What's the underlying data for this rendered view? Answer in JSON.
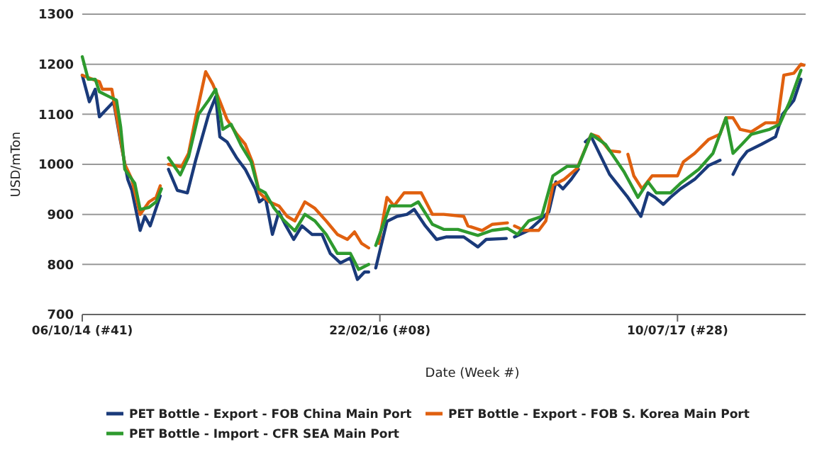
{
  "chart_data": {
    "type": "line",
    "xlabel": "Date (Week #)",
    "ylabel": "USD/mTon",
    "ylim": [
      700,
      1300
    ],
    "yticks": [
      700,
      800,
      900,
      1000,
      1100,
      1200,
      1300
    ],
    "xlim": [
      "2014-10-06",
      "2018-02-12"
    ],
    "xticks": [
      {
        "value": "2014-10-06",
        "label": "06/10/14 (#41)"
      },
      {
        "value": "2016-02-22",
        "label": "22/02/16 (#08)"
      },
      {
        "value": "2017-07-10",
        "label": "10/07/17 (#28)"
      }
    ],
    "grid": "y",
    "legend": "bottom",
    "marker": "none",
    "line_style": "solid",
    "series": [
      {
        "name": "PET Bottle - Export - FOB China Main Port",
        "color": "#1a3a7a",
        "x": [
          "2014-10-06",
          "2014-10-18",
          "2014-10-28",
          "2014-11-04",
          "2014-11-16",
          "2014-11-28",
          "2014-12-10",
          "2014-12-22",
          "2014-12-29",
          "2015-01-12",
          "2015-01-20",
          "2015-01-29",
          "2015-02-15",
          "2015-02-22",
          "2015-03-01",
          "2015-03-16",
          "2015-04-02",
          "2015-04-16",
          "2015-05-08",
          "2015-05-20",
          "2015-05-27",
          "2015-06-08",
          "2015-06-25",
          "2015-07-09",
          "2015-07-26",
          "2015-08-02",
          "2015-08-12",
          "2015-08-24",
          "2015-09-04",
          "2015-09-16",
          "2015-09-29",
          "2015-10-13",
          "2015-10-30",
          "2015-11-16",
          "2015-11-30",
          "2015-12-17",
          "2016-01-03",
          "2016-01-15",
          "2016-01-27",
          "2016-02-03",
          "2016-02-09",
          "2016-02-15",
          "2016-03-05",
          "2016-03-22",
          "2016-04-08",
          "2016-04-20",
          "2016-05-09",
          "2016-05-28",
          "2016-06-14",
          "2016-07-13",
          "2016-08-06",
          "2016-08-20",
          "2016-09-23",
          "2016-09-30",
          "2016-10-07",
          "2016-10-31",
          "2016-11-17",
          "2016-12-04",
          "2016-12-16",
          "2016-12-28",
          "2017-01-11",
          "2017-01-23",
          "2017-01-29",
          "2017-02-04",
          "2017-02-14",
          "2017-03-17",
          "2017-04-17",
          "2017-05-09",
          "2017-05-21",
          "2017-06-02",
          "2017-06-16",
          "2017-06-28",
          "2017-07-15",
          "2017-08-08",
          "2017-09-01",
          "2017-09-20",
          "2017-09-30",
          "2017-10-12",
          "2017-10-24",
          "2017-11-05",
          "2017-11-29",
          "2017-12-23",
          "2018-01-04",
          "2018-01-23",
          "2018-02-04"
        ],
        "values": [
          1178,
          1125,
          1150,
          1095,
          1110,
          1125,
          1045,
          970,
          948,
          868,
          896,
          877,
          937,
          null,
          990,
          948,
          943,
          1008,
          1100,
          1135,
          1055,
          1045,
          1012,
          990,
          951,
          925,
          934,
          860,
          905,
          877,
          850,
          877,
          860,
          860,
          822,
          803,
          813,
          770,
          785,
          785,
          null,
          793,
          886,
          896,
          900,
          910,
          877,
          850,
          855,
          855,
          835,
          850,
          852,
          null,
          855,
          868,
          886,
          905,
          965,
          951,
          970,
          990,
          null,
          1045,
          1055,
          980,
          934,
          896,
          943,
          934,
          920,
          934,
          951,
          970,
          998,
          1008,
          null,
          980,
          1008,
          1026,
          1040,
          1055,
          1100,
          1128,
          1170
        ]
      },
      {
        "name": "PET Bottle - Export - FOB S. Korea Main Port",
        "color": "#e0600f",
        "x": [
          "2014-10-06",
          "2014-10-23",
          "2014-11-04",
          "2014-11-09",
          "2014-11-25",
          "2014-12-05",
          "2014-12-17",
          "2014-12-29",
          "2015-01-12",
          "2015-01-27",
          "2015-02-08",
          "2015-02-15",
          "2015-02-22",
          "2015-03-01",
          "2015-03-23",
          "2015-04-04",
          "2015-04-16",
          "2015-05-03",
          "2015-05-15",
          "2015-05-27",
          "2015-06-08",
          "2015-06-25",
          "2015-07-09",
          "2015-07-21",
          "2015-08-02",
          "2015-08-19",
          "2015-09-04",
          "2015-09-18",
          "2015-10-01",
          "2015-10-18",
          "2015-11-04",
          "2015-11-23",
          "2015-12-12",
          "2015-12-29",
          "2016-01-10",
          "2016-01-22",
          "2016-02-03",
          "2016-02-09",
          "2016-02-20",
          "2016-03-05",
          "2016-03-17",
          "2016-04-03",
          "2016-05-02",
          "2016-05-21",
          "2016-06-09",
          "2016-07-13",
          "2016-07-20",
          "2016-08-13",
          "2016-08-30",
          "2016-09-25",
          "2016-09-30",
          "2016-10-07",
          "2016-10-23",
          "2016-11-17",
          "2016-11-29",
          "2016-12-11",
          "2016-12-30",
          "2017-01-21",
          "2017-02-14",
          "2017-02-26",
          "2017-03-17",
          "2017-04-03",
          "2017-04-10",
          "2017-04-17",
          "2017-04-27",
          "2017-05-11",
          "2017-05-28",
          "2017-06-21",
          "2017-07-10",
          "2017-07-20",
          "2017-08-08",
          "2017-09-01",
          "2017-09-20",
          "2017-09-30",
          "2017-10-12",
          "2017-10-24",
          "2017-11-12",
          "2017-12-06",
          "2017-12-26",
          "2018-01-06",
          "2018-01-23",
          "2018-02-04",
          "2018-02-09"
        ],
        "values": [
          1178,
          1170,
          1165,
          1150,
          1150,
          1083,
          1000,
          970,
          900,
          925,
          934,
          957,
          null,
          1000,
          995,
          1022,
          1093,
          1185,
          1160,
          1126,
          1090,
          1060,
          1040,
          1005,
          943,
          925,
          917,
          896,
          887,
          925,
          912,
          887,
          860,
          850,
          865,
          842,
          833,
          null,
          842,
          934,
          917,
          943,
          943,
          900,
          900,
          896,
          877,
          868,
          880,
          883,
          null,
          877,
          868,
          868,
          887,
          958,
          970,
          992,
          1060,
          1055,
          1027,
          1025,
          null,
          1020,
          977,
          951,
          977,
          977,
          977,
          1005,
          1022,
          1050,
          1060,
          1093,
          1093,
          1070,
          1065,
          1083,
          1083,
          1178,
          1182,
          1200,
          1198
        ]
      },
      {
        "name": "PET Bottle - Import - CFR SEA Main Port",
        "color": "#2e9a2e",
        "x": [
          "2014-10-06",
          "2014-10-16",
          "2014-10-28",
          "2014-11-04",
          "2014-11-21",
          "2014-12-03",
          "2014-12-10",
          "2014-12-17",
          "2015-01-03",
          "2015-01-12",
          "2015-01-27",
          "2015-02-08",
          "2015-02-17",
          "2015-02-22",
          "2015-03-01",
          "2015-03-21",
          "2015-04-04",
          "2015-04-21",
          "2015-05-08",
          "2015-05-20",
          "2015-06-01",
          "2015-06-15",
          "2015-07-02",
          "2015-07-19",
          "2015-07-31",
          "2015-08-12",
          "2015-08-26",
          "2015-09-11",
          "2015-10-01",
          "2015-10-18",
          "2015-11-04",
          "2015-11-23",
          "2015-12-12",
          "2016-01-03",
          "2016-01-17",
          "2016-02-03",
          "2016-02-09",
          "2016-02-15",
          "2016-03-10",
          "2016-03-27",
          "2016-04-15",
          "2016-04-27",
          "2016-05-21",
          "2016-06-09",
          "2016-07-03",
          "2016-08-06",
          "2016-08-30",
          "2016-09-25",
          "2016-10-12",
          "2016-10-31",
          "2016-11-22",
          "2016-12-11",
          "2017-01-04",
          "2017-01-23",
          "2017-02-14",
          "2017-03-10",
          "2017-04-10",
          "2017-05-04",
          "2017-05-21",
          "2017-06-04",
          "2017-06-28",
          "2017-07-15",
          "2017-08-15",
          "2017-09-08",
          "2017-09-30",
          "2017-10-12",
          "2017-10-27",
          "2017-11-12",
          "2017-12-13",
          "2017-12-30",
          "2018-01-16",
          "2018-02-04"
        ],
        "values": [
          1215,
          1170,
          1170,
          1145,
          1135,
          1128,
          1075,
          990,
          962,
          910,
          914,
          925,
          951,
          null,
          1013,
          979,
          1015,
          1100,
          1128,
          1150,
          1070,
          1080,
          1038,
          1005,
          951,
          943,
          914,
          890,
          867,
          900,
          887,
          860,
          822,
          822,
          790,
          800,
          null,
          838,
          917,
          917,
          917,
          925,
          880,
          870,
          870,
          858,
          868,
          872,
          860,
          887,
          896,
          977,
          996,
          996,
          1060,
          1040,
          986,
          934,
          965,
          943,
          943,
          962,
          990,
          1022,
          1093,
          1022,
          1040,
          1060,
          1070,
          1080,
          1125,
          1188
        ]
      }
    ]
  }
}
